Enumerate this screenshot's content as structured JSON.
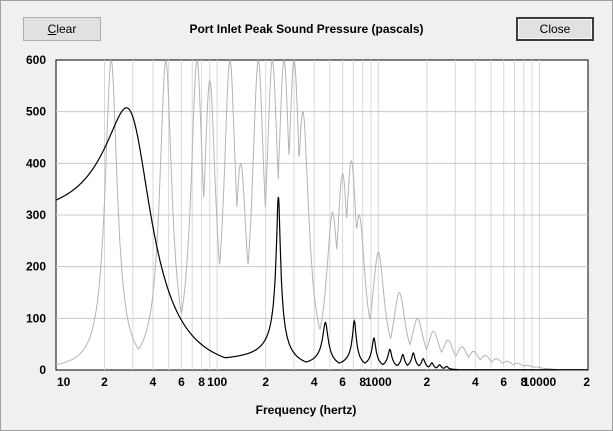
{
  "window": {
    "clear_label_first": "C",
    "clear_label_rest": "lear",
    "close_label": "Close"
  },
  "chart_data": {
    "type": "line",
    "title": "Port Inlet Peak Sound Pressure (pascals)",
    "xlabel": "Frequency (hertz)",
    "ylabel": "",
    "xscale": "log",
    "xlim": [
      10,
      20000
    ],
    "ylim": [
      0,
      600
    ],
    "grid": true,
    "yticks": [
      "0",
      "100",
      "200",
      "300",
      "400",
      "500",
      "600"
    ],
    "xticks": [
      {
        "v": 10,
        "label": "10"
      },
      {
        "v": 20,
        "label": "2"
      },
      {
        "v": 40,
        "label": "4"
      },
      {
        "v": 60,
        "label": "6"
      },
      {
        "v": 80,
        "label": "8"
      },
      {
        "v": 100,
        "label": "100"
      },
      {
        "v": 200,
        "label": "2"
      },
      {
        "v": 400,
        "label": "4"
      },
      {
        "v": 600,
        "label": "6"
      },
      {
        "v": 800,
        "label": "8"
      },
      {
        "v": 1000,
        "label": "1000"
      },
      {
        "v": 2000,
        "label": "2"
      },
      {
        "v": 4000,
        "label": "4"
      },
      {
        "v": 6000,
        "label": "6"
      },
      {
        "v": 8000,
        "label": "8"
      },
      {
        "v": 10000,
        "label": "10000"
      },
      {
        "v": 20000,
        "label": "2"
      }
    ],
    "series": [
      {
        "color": "#000000",
        "peaks": [
          {
            "f": 30.5,
            "a": 482,
            "q": 1.6
          },
          {
            "f": 240,
            "a": 335,
            "q": 18
          },
          {
            "f": 470,
            "a": 92,
            "q": 14
          },
          {
            "f": 710,
            "a": 95,
            "q": 20
          },
          {
            "f": 940,
            "a": 62,
            "q": 20
          },
          {
            "f": 1180,
            "a": 40,
            "q": 20
          },
          {
            "f": 1420,
            "a": 30,
            "q": 22
          },
          {
            "f": 1650,
            "a": 33,
            "q": 22
          },
          {
            "f": 1900,
            "a": 22,
            "q": 22
          },
          {
            "f": 2150,
            "a": 14,
            "q": 24
          },
          {
            "f": 2400,
            "a": 10,
            "q": 24
          },
          {
            "f": 2650,
            "a": 7,
            "q": 24
          }
        ],
        "baseline": 40
      },
      {
        "color": "#b4b4b4",
        "approx_peaks": [
          {
            "f": 22,
            "a": 600
          },
          {
            "f": 48,
            "a": 600
          },
          {
            "f": 75,
            "a": 600
          },
          {
            "f": 90,
            "a": 560
          },
          {
            "f": 120,
            "a": 600
          },
          {
            "f": 140,
            "a": 400
          },
          {
            "f": 180,
            "a": 600
          },
          {
            "f": 220,
            "a": 600
          },
          {
            "f": 260,
            "a": 600
          },
          {
            "f": 300,
            "a": 600
          },
          {
            "f": 340,
            "a": 500
          },
          {
            "f": 520,
            "a": 305
          },
          {
            "f": 600,
            "a": 380
          },
          {
            "f": 680,
            "a": 405
          },
          {
            "f": 760,
            "a": 300
          },
          {
            "f": 1000,
            "a": 228
          },
          {
            "f": 1350,
            "a": 150
          },
          {
            "f": 1750,
            "a": 100
          },
          {
            "f": 2200,
            "a": 75
          },
          {
            "f": 2700,
            "a": 58
          },
          {
            "f": 3300,
            "a": 45
          },
          {
            "f": 3900,
            "a": 36
          },
          {
            "f": 4600,
            "a": 28
          },
          {
            "f": 5400,
            "a": 22
          },
          {
            "f": 6300,
            "a": 17
          },
          {
            "f": 7300,
            "a": 13
          },
          {
            "f": 8400,
            "a": 9
          },
          {
            "f": 9600,
            "a": 6
          },
          {
            "f": 11000,
            "a": 3
          }
        ]
      }
    ]
  }
}
